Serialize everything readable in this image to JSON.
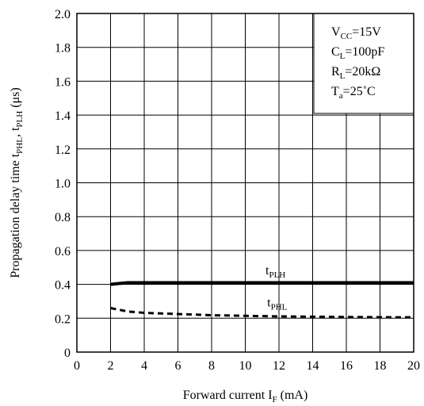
{
  "chart_data": {
    "type": "line",
    "xlabel": {
      "main": "Forward current  I",
      "sub": "F",
      "tail": " (mA)"
    },
    "ylabel": {
      "main": "Propagation delay time t",
      "sub1": "PHL",
      "mid": ", t",
      "sub2": "PLH",
      "tail": " (μs)"
    },
    "xlim": [
      0,
      20
    ],
    "ylim": [
      0,
      2.0
    ],
    "x_ticks": [
      0,
      2,
      4,
      6,
      8,
      10,
      12,
      14,
      16,
      18,
      20
    ],
    "x_tick_labels": [
      "0",
      "2",
      "4",
      "6",
      "8",
      "10",
      "12",
      "14",
      "16",
      "18",
      "20"
    ],
    "y_ticks": [
      0,
      0.2,
      0.4,
      0.6,
      0.8,
      1.0,
      1.2,
      1.4,
      1.6,
      1.8,
      2.0
    ],
    "y_tick_labels": [
      "0",
      "0.2",
      "0.4",
      "0.6",
      "0.8",
      "1.0",
      "1.2",
      "1.4",
      "1.6",
      "1.8",
      "2.0"
    ],
    "grid": true,
    "conditions": [
      {
        "main": "V",
        "sub": "CC",
        "tail": "=15V"
      },
      {
        "main": "C",
        "sub": "L",
        "tail": "=100pF"
      },
      {
        "main": "R",
        "sub": "L",
        "tail": "=20kΩ"
      },
      {
        "main": "T",
        "sub": "a",
        "tail": "=25˚C"
      }
    ],
    "series": [
      {
        "name": "tPLH",
        "label_main": "t",
        "label_sub": "PLH",
        "style": "solid",
        "label_at": [
          11.2,
          0.46
        ],
        "x": [
          2,
          2.5,
          3,
          4,
          6,
          8,
          10,
          12,
          14,
          16,
          18,
          20
        ],
        "y": [
          0.4,
          0.405,
          0.41,
          0.41,
          0.41,
          0.41,
          0.41,
          0.41,
          0.41,
          0.41,
          0.41,
          0.41
        ]
      },
      {
        "name": "tPHL",
        "label_main": "t",
        "label_sub": "PHL",
        "style": "dashed",
        "label_at": [
          11.3,
          0.27
        ],
        "x": [
          2,
          2.5,
          3,
          4,
          5,
          6,
          8,
          10,
          12,
          14,
          16,
          18,
          20
        ],
        "y": [
          0.26,
          0.25,
          0.24,
          0.232,
          0.228,
          0.225,
          0.218,
          0.214,
          0.211,
          0.209,
          0.207,
          0.206,
          0.205
        ]
      }
    ]
  }
}
